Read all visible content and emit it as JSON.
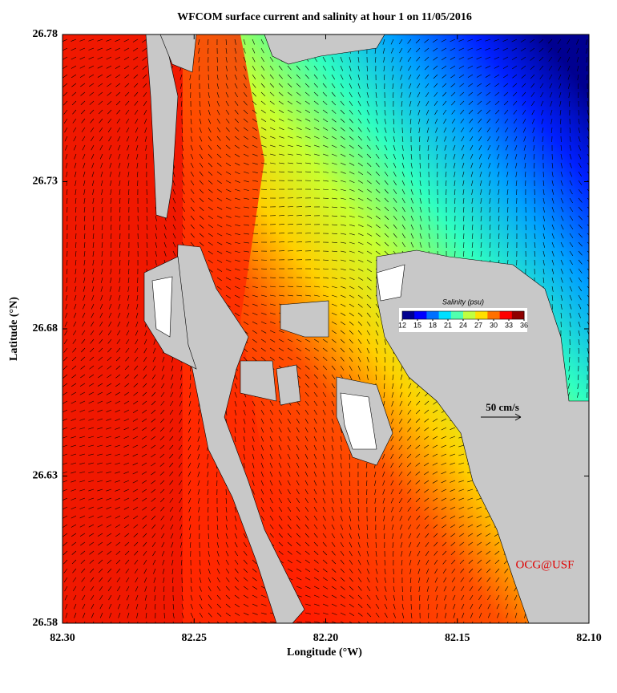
{
  "chart_data": {
    "type": "map",
    "title": "WFCOM surface current and salinity at hour 1 on 11/05/2016",
    "x_label": "Longitude (°W)",
    "y_label": "Latitude (°N)",
    "xlim": [
      82.3,
      82.1
    ],
    "xticks": [
      {
        "value": 82.3,
        "label": "82.30"
      },
      {
        "value": 82.25,
        "label": "82.25"
      },
      {
        "value": 82.2,
        "label": "82.20"
      },
      {
        "value": 82.15,
        "label": "82.15"
      },
      {
        "value": 82.1,
        "label": "82.10"
      }
    ],
    "ylim": [
      26.58,
      26.78
    ],
    "yticks": [
      26.58,
      26.63,
      26.68,
      26.73,
      26.78
    ],
    "colorbar": {
      "label": "Salinity (psu)",
      "range": [
        12,
        36
      ],
      "ticks": [
        12,
        15,
        18,
        21,
        24,
        27,
        30,
        33,
        36
      ],
      "colors": [
        "#00008f",
        "#0000ff",
        "#0070ff",
        "#00dfff",
        "#50ffaf",
        "#bfff40",
        "#ffdf00",
        "#ff7000",
        "#ff0000",
        "#8f0000"
      ]
    },
    "scale_arrow_label": "50 cm/s",
    "credit": "OCG@USF"
  }
}
